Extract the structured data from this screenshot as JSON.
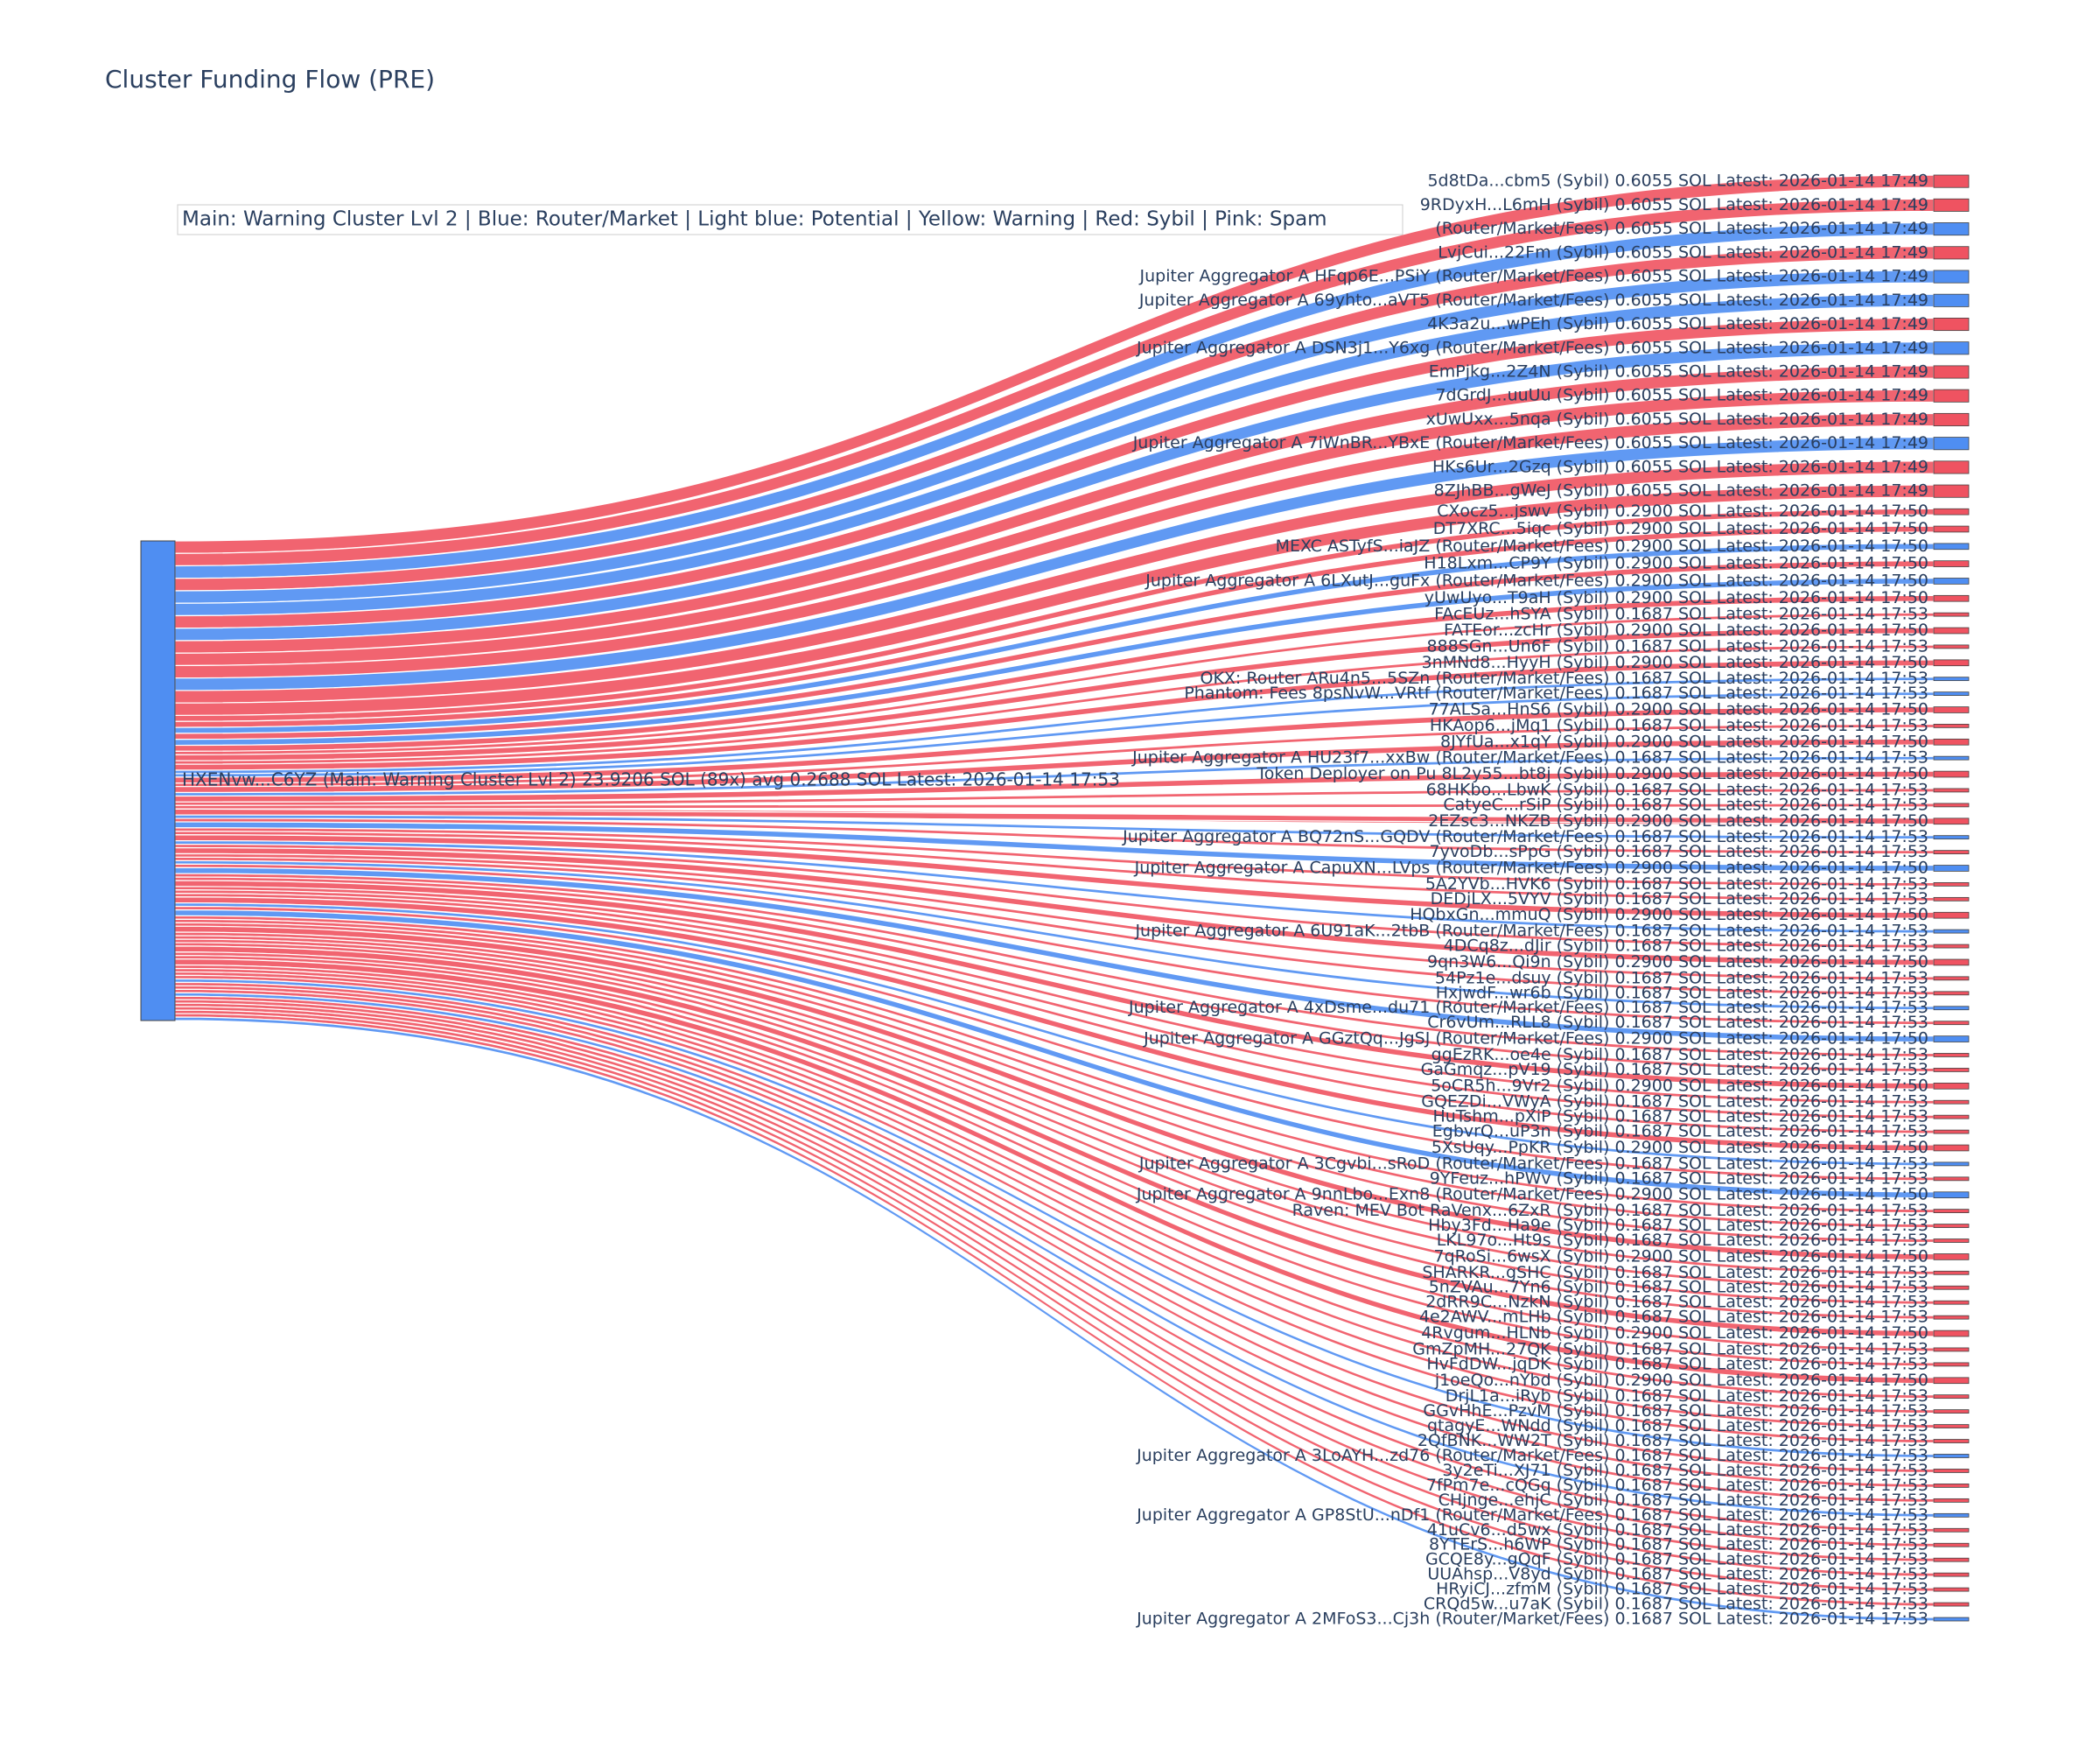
{
  "chart_data": {
    "type": "sankey",
    "title": "Cluster Funding Flow (PRE)",
    "legend": "Main: Warning Cluster Lvl 2  |  Blue: Router/Market | Light blue: Potential | Yellow: Warning | Red: Sybil | Pink: Spam",
    "source": {
      "label": "HXENvw...C6YZ (Main: Warning Cluster Lvl 2) 23.9206 SOL (89x) avg 0.2688 SOL Latest: 2026-01-14 17:53",
      "color": "#4f8ef2"
    },
    "targets": [
      {
        "label": "5d8tDa...cbm5 (Sybil) 0.6055 SOL Latest: 2026-01-14 17:49",
        "value": 0.6055,
        "color": "#ef5361"
      },
      {
        "label": "9RDyxH...L6mH (Sybil) 0.6055 SOL Latest: 2026-01-14 17:49",
        "value": 0.6055,
        "color": "#ef5361"
      },
      {
        "label": "(Router/Market/Fees) 0.6055 SOL Latest: 2026-01-14 17:49",
        "value": 0.6055,
        "color": "#4f8ef2"
      },
      {
        "label": "LvjCui...22Fm (Sybil) 0.6055 SOL Latest: 2026-01-14 17:49",
        "value": 0.6055,
        "color": "#ef5361"
      },
      {
        "label": "Jupiter Aggregator A HFqp6E...PSiY (Router/Market/Fees) 0.6055 SOL Latest: 2026-01-14 17:49",
        "value": 0.6055,
        "color": "#4f8ef2"
      },
      {
        "label": "Jupiter Aggregator A 69yhto...aVT5 (Router/Market/Fees) 0.6055 SOL Latest: 2026-01-14 17:49",
        "value": 0.6055,
        "color": "#4f8ef2"
      },
      {
        "label": "4K3a2u...wPEh (Sybil) 0.6055 SOL Latest: 2026-01-14 17:49",
        "value": 0.6055,
        "color": "#ef5361"
      },
      {
        "label": "Jupiter Aggregator A DSN3j1...Y6xg (Router/Market/Fees) 0.6055 SOL Latest: 2026-01-14 17:49",
        "value": 0.6055,
        "color": "#4f8ef2"
      },
      {
        "label": "EmPjkg...2Z4N (Sybil) 0.6055 SOL Latest: 2026-01-14 17:49",
        "value": 0.6055,
        "color": "#ef5361"
      },
      {
        "label": "7dGrdJ...uuUu (Sybil) 0.6055 SOL Latest: 2026-01-14 17:49",
        "value": 0.6055,
        "color": "#ef5361"
      },
      {
        "label": "xUwUxx...5nqa (Sybil) 0.6055 SOL Latest: 2026-01-14 17:49",
        "value": 0.6055,
        "color": "#ef5361"
      },
      {
        "label": "Jupiter Aggregator A 7iWnBR...YBxE (Router/Market/Fees) 0.6055 SOL Latest: 2026-01-14 17:49",
        "value": 0.6055,
        "color": "#4f8ef2"
      },
      {
        "label": "HKs6Ur...2Gzq (Sybil) 0.6055 SOL Latest: 2026-01-14 17:49",
        "value": 0.6055,
        "color": "#ef5361"
      },
      {
        "label": "8ZJhBB...gWeJ (Sybil) 0.6055 SOL Latest: 2026-01-14 17:49",
        "value": 0.6055,
        "color": "#ef5361"
      },
      {
        "label": "CXocz5...jswv (Sybil) 0.2900 SOL Latest: 2026-01-14 17:50",
        "value": 0.29,
        "color": "#ef5361"
      },
      {
        "label": "DT7XRC...5iqc (Sybil) 0.2900 SOL Latest: 2026-01-14 17:50",
        "value": 0.29,
        "color": "#ef5361"
      },
      {
        "label": "MEXC ASTyfS...iaJZ (Router/Market/Fees) 0.2900 SOL Latest: 2026-01-14 17:50",
        "value": 0.29,
        "color": "#4f8ef2"
      },
      {
        "label": "H18Lxm...CP9Y (Sybil) 0.2900 SOL Latest: 2026-01-14 17:50",
        "value": 0.29,
        "color": "#ef5361"
      },
      {
        "label": "Jupiter Aggregator A 6LXutJ...guFx (Router/Market/Fees) 0.2900 SOL Latest: 2026-01-14 17:50",
        "value": 0.29,
        "color": "#4f8ef2"
      },
      {
        "label": "yUwUyo...T9aH (Sybil) 0.2900 SOL Latest: 2026-01-14 17:50",
        "value": 0.29,
        "color": "#ef5361"
      },
      {
        "label": "FAcEUz...hSYA (Sybil) 0.1687 SOL Latest: 2026-01-14 17:53",
        "value": 0.1687,
        "color": "#ef5361"
      },
      {
        "label": "FATEor...zcHr (Sybil) 0.2900 SOL Latest: 2026-01-14 17:50",
        "value": 0.29,
        "color": "#ef5361"
      },
      {
        "label": "888SGn...Un6F (Sybil) 0.1687 SOL Latest: 2026-01-14 17:53",
        "value": 0.1687,
        "color": "#ef5361"
      },
      {
        "label": "3nMNd8...HyyH (Sybil) 0.2900 SOL Latest: 2026-01-14 17:50",
        "value": 0.29,
        "color": "#ef5361"
      },
      {
        "label": "OKX: Router ARu4n5...5SZn (Router/Market/Fees) 0.1687 SOL Latest: 2026-01-14 17:53",
        "value": 0.1687,
        "color": "#4f8ef2"
      },
      {
        "label": "Phantom: Fees 8psNvW...VRtf (Router/Market/Fees) 0.1687 SOL Latest: 2026-01-14 17:53",
        "value": 0.1687,
        "color": "#4f8ef2"
      },
      {
        "label": "77ALSa...HnS6 (Sybil) 0.2900 SOL Latest: 2026-01-14 17:50",
        "value": 0.29,
        "color": "#ef5361"
      },
      {
        "label": "HKAop6...jMq1 (Sybil) 0.1687 SOL Latest: 2026-01-14 17:53",
        "value": 0.1687,
        "color": "#ef5361"
      },
      {
        "label": "8JYfUa...x1qY (Sybil) 0.2900 SOL Latest: 2026-01-14 17:50",
        "value": 0.29,
        "color": "#ef5361"
      },
      {
        "label": "Jupiter Aggregator A HU23f7...xxBw (Router/Market/Fees) 0.1687 SOL Latest: 2026-01-14 17:53",
        "value": 0.1687,
        "color": "#4f8ef2"
      },
      {
        "label": "Token Deployer on Pu 8L2y55...bt8j (Sybil) 0.2900 SOL Latest: 2026-01-14 17:50",
        "value": 0.29,
        "color": "#ef5361"
      },
      {
        "label": "68HKbo...LbwK (Sybil) 0.1687 SOL Latest: 2026-01-14 17:53",
        "value": 0.1687,
        "color": "#ef5361"
      },
      {
        "label": "CatyeC...rSiP (Sybil) 0.1687 SOL Latest: 2026-01-14 17:53",
        "value": 0.1687,
        "color": "#ef5361"
      },
      {
        "label": "2EZsc3...NKZB (Sybil) 0.2900 SOL Latest: 2026-01-14 17:50",
        "value": 0.29,
        "color": "#ef5361"
      },
      {
        "label": "Jupiter Aggregator A BQ72nS...GQDV (Router/Market/Fees) 0.1687 SOL Latest: 2026-01-14 17:53",
        "value": 0.1687,
        "color": "#4f8ef2"
      },
      {
        "label": "7yvoDb...sPpG (Sybil) 0.1687 SOL Latest: 2026-01-14 17:53",
        "value": 0.1687,
        "color": "#ef5361"
      },
      {
        "label": "Jupiter Aggregator A CapuXN...LVps (Router/Market/Fees) 0.2900 SOL Latest: 2026-01-14 17:50",
        "value": 0.29,
        "color": "#4f8ef2"
      },
      {
        "label": "5A2YVb...HVK6 (Sybil) 0.1687 SOL Latest: 2026-01-14 17:53",
        "value": 0.1687,
        "color": "#ef5361"
      },
      {
        "label": "DEDjLX...5VYV (Sybil) 0.1687 SOL Latest: 2026-01-14 17:53",
        "value": 0.1687,
        "color": "#ef5361"
      },
      {
        "label": "HQbxGn...mmuQ (Sybil) 0.2900 SOL Latest: 2026-01-14 17:50",
        "value": 0.29,
        "color": "#ef5361"
      },
      {
        "label": "Jupiter Aggregator A 6U91aK...2tbB (Router/Market/Fees) 0.1687 SOL Latest: 2026-01-14 17:53",
        "value": 0.1687,
        "color": "#4f8ef2"
      },
      {
        "label": "4DCq8z...dJir (Sybil) 0.1687 SOL Latest: 2026-01-14 17:53",
        "value": 0.1687,
        "color": "#ef5361"
      },
      {
        "label": "9qn3W6...Qi9n (Sybil) 0.2900 SOL Latest: 2026-01-14 17:50",
        "value": 0.29,
        "color": "#ef5361"
      },
      {
        "label": "54Pz1e...dsuy (Sybil) 0.1687 SOL Latest: 2026-01-14 17:53",
        "value": 0.1687,
        "color": "#ef5361"
      },
      {
        "label": "HxjwdF...wr6b (Sybil) 0.1687 SOL Latest: 2026-01-14 17:53",
        "value": 0.1687,
        "color": "#ef5361"
      },
      {
        "label": "Jupiter Aggregator A 4xDsme...du71 (Router/Market/Fees) 0.1687 SOL Latest: 2026-01-14 17:53",
        "value": 0.1687,
        "color": "#4f8ef2"
      },
      {
        "label": "Cr6vUm...RLL8 (Sybil) 0.1687 SOL Latest: 2026-01-14 17:53",
        "value": 0.1687,
        "color": "#ef5361"
      },
      {
        "label": "Jupiter Aggregator A GGztQq...JgSJ (Router/Market/Fees) 0.2900 SOL Latest: 2026-01-14 17:50",
        "value": 0.29,
        "color": "#4f8ef2"
      },
      {
        "label": "ggEzRK...oe4e (Sybil) 0.1687 SOL Latest: 2026-01-14 17:53",
        "value": 0.1687,
        "color": "#ef5361"
      },
      {
        "label": "GaGmqz...pV19 (Sybil) 0.1687 SOL Latest: 2026-01-14 17:53",
        "value": 0.1687,
        "color": "#ef5361"
      },
      {
        "label": "5oCR5h...9Vr2 (Sybil) 0.2900 SOL Latest: 2026-01-14 17:50",
        "value": 0.29,
        "color": "#ef5361"
      },
      {
        "label": "GQEZDi...VWyA (Sybil) 0.1687 SOL Latest: 2026-01-14 17:53",
        "value": 0.1687,
        "color": "#ef5361"
      },
      {
        "label": "HuTshm...pXiP (Sybil) 0.1687 SOL Latest: 2026-01-14 17:53",
        "value": 0.1687,
        "color": "#ef5361"
      },
      {
        "label": "EgbvrQ...uP3n (Sybil) 0.1687 SOL Latest: 2026-01-14 17:53",
        "value": 0.1687,
        "color": "#ef5361"
      },
      {
        "label": "5XsUqy...PpKR (Sybil) 0.2900 SOL Latest: 2026-01-14 17:50",
        "value": 0.29,
        "color": "#ef5361"
      },
      {
        "label": "Jupiter Aggregator A 3Cgvbi...sRoD (Router/Market/Fees) 0.1687 SOL Latest: 2026-01-14 17:53",
        "value": 0.1687,
        "color": "#4f8ef2"
      },
      {
        "label": "9YFeuz...hPWv (Sybil) 0.1687 SOL Latest: 2026-01-14 17:53",
        "value": 0.1687,
        "color": "#ef5361"
      },
      {
        "label": "Jupiter Aggregator A 9nnLbo...Exn8 (Router/Market/Fees) 0.2900 SOL Latest: 2026-01-14 17:50",
        "value": 0.29,
        "color": "#4f8ef2"
      },
      {
        "label": "Raven: MEV Bot RaVenx...6ZxR (Sybil) 0.1687 SOL Latest: 2026-01-14 17:53",
        "value": 0.1687,
        "color": "#ef5361"
      },
      {
        "label": "Hby3Fd...Ha9e (Sybil) 0.1687 SOL Latest: 2026-01-14 17:53",
        "value": 0.1687,
        "color": "#ef5361"
      },
      {
        "label": "LKL97o...Ht9s (Sybil) 0.1687 SOL Latest: 2026-01-14 17:53",
        "value": 0.1687,
        "color": "#ef5361"
      },
      {
        "label": "7qRoSi...6wsX (Sybil) 0.2900 SOL Latest: 2026-01-14 17:50",
        "value": 0.29,
        "color": "#ef5361"
      },
      {
        "label": "SHARKR...gSHC (Sybil) 0.1687 SOL Latest: 2026-01-14 17:53",
        "value": 0.1687,
        "color": "#ef5361"
      },
      {
        "label": "5nZVAu...7Yn6 (Sybil) 0.1687 SOL Latest: 2026-01-14 17:53",
        "value": 0.1687,
        "color": "#ef5361"
      },
      {
        "label": "2dRR9C...NzkN (Sybil) 0.1687 SOL Latest: 2026-01-14 17:53",
        "value": 0.1687,
        "color": "#ef5361"
      },
      {
        "label": "4e2AWV...mLHb (Sybil) 0.1687 SOL Latest: 2026-01-14 17:53",
        "value": 0.1687,
        "color": "#ef5361"
      },
      {
        "label": "4Rvgum...HLNb (Sybil) 0.2900 SOL Latest: 2026-01-14 17:50",
        "value": 0.29,
        "color": "#ef5361"
      },
      {
        "label": "GmZpMH...27QK (Sybil) 0.1687 SOL Latest: 2026-01-14 17:53",
        "value": 0.1687,
        "color": "#ef5361"
      },
      {
        "label": "HvFdDW...jqDK (Sybil) 0.1687 SOL Latest: 2026-01-14 17:53",
        "value": 0.1687,
        "color": "#ef5361"
      },
      {
        "label": "j1oeQo...nYbd (Sybil) 0.2900 SOL Latest: 2026-01-14 17:50",
        "value": 0.29,
        "color": "#ef5361"
      },
      {
        "label": "DrjL1a...iRyb (Sybil) 0.1687 SOL Latest: 2026-01-14 17:53",
        "value": 0.1687,
        "color": "#ef5361"
      },
      {
        "label": "GGvHhE...PzvM (Sybil) 0.1687 SOL Latest: 2026-01-14 17:53",
        "value": 0.1687,
        "color": "#ef5361"
      },
      {
        "label": "qtagyE...WNdd (Sybil) 0.1687 SOL Latest: 2026-01-14 17:53",
        "value": 0.1687,
        "color": "#ef5361"
      },
      {
        "label": "2QfBNK...WW2T (Sybil) 0.1687 SOL Latest: 2026-01-14 17:53",
        "value": 0.1687,
        "color": "#ef5361"
      },
      {
        "label": "Jupiter Aggregator A 3LoAYH...zd76 (Router/Market/Fees) 0.1687 SOL Latest: 2026-01-14 17:53",
        "value": 0.1687,
        "color": "#4f8ef2"
      },
      {
        "label": "3y2eTi...XJ71 (Sybil) 0.1687 SOL Latest: 2026-01-14 17:53",
        "value": 0.1687,
        "color": "#ef5361"
      },
      {
        "label": "7fPm7e...cQGq (Sybil) 0.1687 SOL Latest: 2026-01-14 17:53",
        "value": 0.1687,
        "color": "#ef5361"
      },
      {
        "label": "CHjnge...ehjC (Sybil) 0.1687 SOL Latest: 2026-01-14 17:53",
        "value": 0.1687,
        "color": "#ef5361"
      },
      {
        "label": "Jupiter Aggregator A GP8StU...nDf1 (Router/Market/Fees) 0.1687 SOL Latest: 2026-01-14 17:53",
        "value": 0.1687,
        "color": "#4f8ef2"
      },
      {
        "label": "41uCv6...d5wx (Sybil) 0.1687 SOL Latest: 2026-01-14 17:53",
        "value": 0.1687,
        "color": "#ef5361"
      },
      {
        "label": "8YTErS...h6WP (Sybil) 0.1687 SOL Latest: 2026-01-14 17:53",
        "value": 0.1687,
        "color": "#ef5361"
      },
      {
        "label": "GCQE8y...gQqF (Sybil) 0.1687 SOL Latest: 2026-01-14 17:53",
        "value": 0.1687,
        "color": "#ef5361"
      },
      {
        "label": "UUAhsp...V8yd (Sybil) 0.1687 SOL Latest: 2026-01-14 17:53",
        "value": 0.1687,
        "color": "#ef5361"
      },
      {
        "label": "HRyiCJ...zfmM (Sybil) 0.1687 SOL Latest: 2026-01-14 17:53",
        "value": 0.1687,
        "color": "#ef5361"
      },
      {
        "label": "CRQd5w...u7aK (Sybil) 0.1687 SOL Latest: 2026-01-14 17:53",
        "value": 0.1687,
        "color": "#ef5361"
      },
      {
        "label": "Jupiter Aggregator A 2MFoS3...Cj3h (Router/Market/Fees) 0.1687 SOL Latest: 2026-01-14 17:53",
        "value": 0.1687,
        "color": "#4f8ef2"
      }
    ]
  }
}
